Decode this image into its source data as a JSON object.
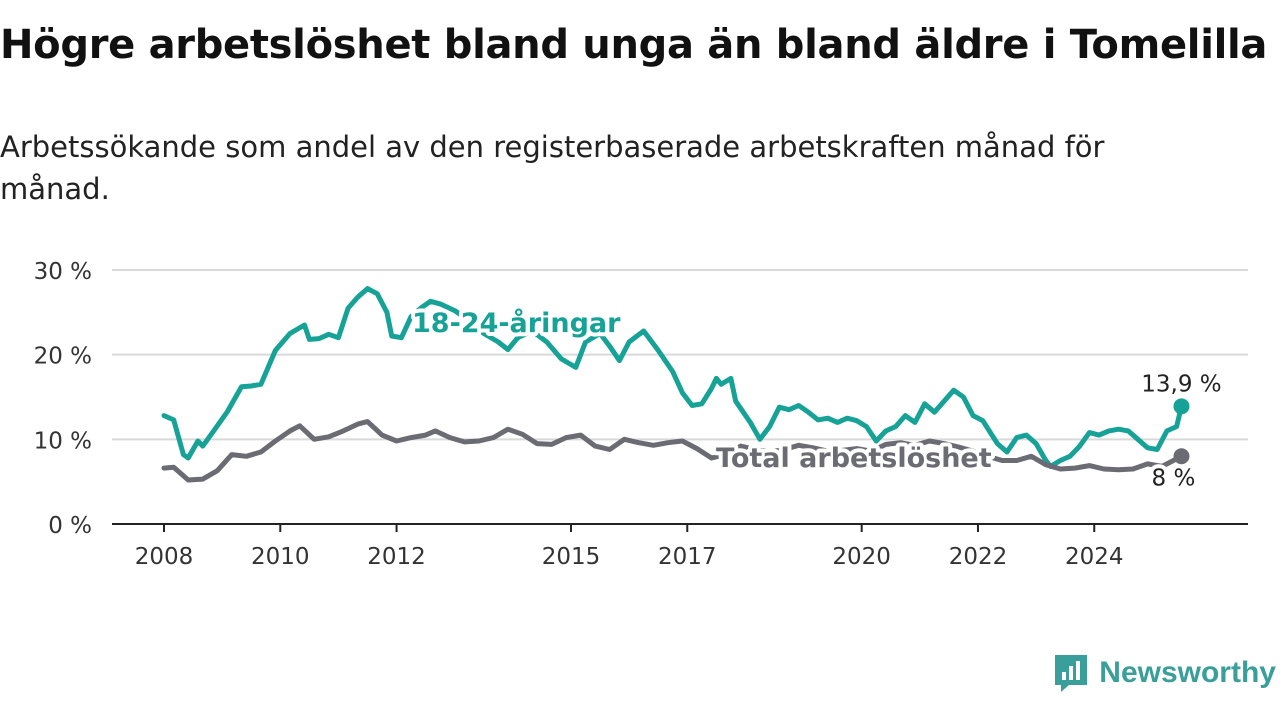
{
  "title": "Högre arbetslöshet bland unga än bland äldre i Tomelilla",
  "subtitle": "Arbetssökande som andel av den registerbaserade arbetskraften månad för månad.",
  "brand": "Newsworthy",
  "colors": {
    "youth": "#17a297",
    "total": "#6b6b74",
    "grid": "#d9d9d9",
    "axis": "#222222",
    "brand": "#3a9e9a"
  },
  "chart_data": {
    "type": "line",
    "title": "Högre arbetslöshet bland unga än bland äldre i Tomelilla",
    "xlabel": "",
    "ylabel": "",
    "ylim": [
      0,
      30
    ],
    "xlim": [
      "2008-01",
      "2025-10"
    ],
    "y_ticks": [
      0,
      10,
      20,
      30
    ],
    "y_tick_labels": [
      "0 %",
      "10 %",
      "20 %",
      "30 %"
    ],
    "x_ticks": [
      {
        "label": "2008",
        "date": "2008-01"
      },
      {
        "label": "2010",
        "date": "2010-01"
      },
      {
        "label": "2012",
        "date": "2012-01"
      },
      {
        "label": "2015",
        "date": "2015-01"
      },
      {
        "label": "2017",
        "date": "2017-01"
      },
      {
        "label": "2020",
        "date": "2020-01"
      },
      {
        "label": "2022",
        "date": "2022-01"
      },
      {
        "label": "2024",
        "date": "2024-01"
      }
    ],
    "grid": true,
    "legend": "inline labels",
    "series": [
      {
        "name": "18-24-åringar",
        "color": "#17a297",
        "end_label": "13,9 %",
        "points": [
          [
            "2008-01",
            12.8
          ],
          [
            "2008-03",
            12.3
          ],
          [
            "2008-05",
            8.2
          ],
          [
            "2008-06",
            7.8
          ],
          [
            "2008-08",
            9.8
          ],
          [
            "2008-09",
            9.2
          ],
          [
            "2008-11",
            10.8
          ],
          [
            "2009-02",
            13.2
          ],
          [
            "2009-05",
            16.2
          ],
          [
            "2009-07",
            16.3
          ],
          [
            "2009-09",
            16.5
          ],
          [
            "2009-12",
            20.5
          ],
          [
            "2010-03",
            22.5
          ],
          [
            "2010-06",
            23.5
          ],
          [
            "2010-07",
            21.8
          ],
          [
            "2010-09",
            21.9
          ],
          [
            "2010-11",
            22.4
          ],
          [
            "2011-01",
            22.0
          ],
          [
            "2011-03",
            25.5
          ],
          [
            "2011-05",
            26.8
          ],
          [
            "2011-07",
            27.8
          ],
          [
            "2011-09",
            27.2
          ],
          [
            "2011-11",
            25.0
          ],
          [
            "2011-12",
            22.2
          ],
          [
            "2012-02",
            22.0
          ],
          [
            "2012-04",
            24.5
          ],
          [
            "2012-06",
            25.5
          ],
          [
            "2012-08",
            26.3
          ],
          [
            "2012-10",
            26.0
          ],
          [
            "2013-01",
            25.2
          ],
          [
            "2013-04",
            24.0
          ],
          [
            "2013-07",
            22.5
          ],
          [
            "2013-10",
            21.5
          ],
          [
            "2013-12",
            20.6
          ],
          [
            "2014-02",
            22.0
          ],
          [
            "2014-05",
            22.8
          ],
          [
            "2014-08",
            21.5
          ],
          [
            "2014-11",
            19.5
          ],
          [
            "2015-02",
            18.5
          ],
          [
            "2015-04",
            21.5
          ],
          [
            "2015-07",
            22.5
          ],
          [
            "2015-09",
            21.0
          ],
          [
            "2015-11",
            19.3
          ],
          [
            "2016-01",
            21.5
          ],
          [
            "2016-04",
            22.8
          ],
          [
            "2016-07",
            20.5
          ],
          [
            "2016-10",
            18.0
          ],
          [
            "2016-12",
            15.5
          ],
          [
            "2017-02",
            14.0
          ],
          [
            "2017-04",
            14.2
          ],
          [
            "2017-06",
            16.0
          ],
          [
            "2017-07",
            17.2
          ],
          [
            "2017-08",
            16.5
          ],
          [
            "2017-10",
            17.2
          ],
          [
            "2017-11",
            14.5
          ],
          [
            "2018-02",
            12.0
          ],
          [
            "2018-04",
            10.0
          ],
          [
            "2018-06",
            11.5
          ],
          [
            "2018-08",
            13.8
          ],
          [
            "2018-10",
            13.5
          ],
          [
            "2018-12",
            14.0
          ],
          [
            "2019-02",
            13.2
          ],
          [
            "2019-04",
            12.3
          ],
          [
            "2019-06",
            12.5
          ],
          [
            "2019-08",
            12.0
          ],
          [
            "2019-10",
            12.5
          ],
          [
            "2019-12",
            12.2
          ],
          [
            "2020-02",
            11.5
          ],
          [
            "2020-04",
            9.8
          ],
          [
            "2020-06",
            11.0
          ],
          [
            "2020-08",
            11.5
          ],
          [
            "2020-10",
            12.8
          ],
          [
            "2020-12",
            12.0
          ],
          [
            "2021-02",
            14.2
          ],
          [
            "2021-04",
            13.2
          ],
          [
            "2021-06",
            14.5
          ],
          [
            "2021-08",
            15.8
          ],
          [
            "2021-10",
            15.0
          ],
          [
            "2021-12",
            12.8
          ],
          [
            "2022-02",
            12.2
          ],
          [
            "2022-05",
            9.5
          ],
          [
            "2022-07",
            8.5
          ],
          [
            "2022-09",
            10.2
          ],
          [
            "2022-11",
            10.5
          ],
          [
            "2023-01",
            9.5
          ],
          [
            "2023-03",
            7.5
          ],
          [
            "2023-04",
            6.8
          ],
          [
            "2023-06",
            7.5
          ],
          [
            "2023-08",
            8.0
          ],
          [
            "2023-10",
            9.2
          ],
          [
            "2023-12",
            10.8
          ],
          [
            "2024-02",
            10.5
          ],
          [
            "2024-04",
            11.0
          ],
          [
            "2024-06",
            11.2
          ],
          [
            "2024-08",
            11.0
          ],
          [
            "2024-10",
            10.0
          ],
          [
            "2024-12",
            9.0
          ],
          [
            "2025-02",
            8.8
          ],
          [
            "2025-04",
            11.0
          ],
          [
            "2025-06",
            11.5
          ],
          [
            "2025-07",
            13.9
          ]
        ]
      },
      {
        "name": "Total arbetslöshet",
        "color": "#6b6b74",
        "end_label": "8 %",
        "points": [
          [
            "2008-01",
            6.6
          ],
          [
            "2008-03",
            6.7
          ],
          [
            "2008-06",
            5.2
          ],
          [
            "2008-09",
            5.3
          ],
          [
            "2008-12",
            6.3
          ],
          [
            "2009-03",
            8.2
          ],
          [
            "2009-06",
            8.0
          ],
          [
            "2009-09",
            8.5
          ],
          [
            "2009-12",
            9.8
          ],
          [
            "2010-03",
            11.0
          ],
          [
            "2010-05",
            11.6
          ],
          [
            "2010-08",
            10.0
          ],
          [
            "2010-11",
            10.3
          ],
          [
            "2011-02",
            11.0
          ],
          [
            "2011-05",
            11.8
          ],
          [
            "2011-07",
            12.1
          ],
          [
            "2011-10",
            10.5
          ],
          [
            "2012-01",
            9.8
          ],
          [
            "2012-04",
            10.2
          ],
          [
            "2012-07",
            10.5
          ],
          [
            "2012-09",
            11.0
          ],
          [
            "2012-12",
            10.2
          ],
          [
            "2013-03",
            9.7
          ],
          [
            "2013-06",
            9.8
          ],
          [
            "2013-09",
            10.2
          ],
          [
            "2013-12",
            11.2
          ],
          [
            "2014-03",
            10.6
          ],
          [
            "2014-06",
            9.5
          ],
          [
            "2014-09",
            9.4
          ],
          [
            "2014-12",
            10.2
          ],
          [
            "2015-03",
            10.5
          ],
          [
            "2015-06",
            9.2
          ],
          [
            "2015-09",
            8.8
          ],
          [
            "2015-12",
            10.0
          ],
          [
            "2016-03",
            9.6
          ],
          [
            "2016-06",
            9.3
          ],
          [
            "2016-09",
            9.6
          ],
          [
            "2016-12",
            9.8
          ],
          [
            "2017-03",
            8.9
          ],
          [
            "2017-06",
            7.8
          ],
          [
            "2017-09",
            8.2
          ],
          [
            "2017-12",
            9.2
          ],
          [
            "2018-03",
            8.8
          ],
          [
            "2018-06",
            8.5
          ],
          [
            "2018-09",
            8.8
          ],
          [
            "2018-12",
            9.3
          ],
          [
            "2019-03",
            9.0
          ],
          [
            "2019-06",
            8.6
          ],
          [
            "2019-09",
            8.7
          ],
          [
            "2019-12",
            8.9
          ],
          [
            "2020-03",
            8.6
          ],
          [
            "2020-06",
            9.4
          ],
          [
            "2020-09",
            9.6
          ],
          [
            "2020-12",
            9.3
          ],
          [
            "2021-03",
            9.8
          ],
          [
            "2021-06",
            9.5
          ],
          [
            "2021-09",
            9.1
          ],
          [
            "2021-12",
            8.6
          ],
          [
            "2022-03",
            8.0
          ],
          [
            "2022-06",
            7.5
          ],
          [
            "2022-09",
            7.5
          ],
          [
            "2022-12",
            8.0
          ],
          [
            "2023-03",
            7.0
          ],
          [
            "2023-06",
            6.5
          ],
          [
            "2023-09",
            6.6
          ],
          [
            "2023-12",
            6.9
          ],
          [
            "2024-03",
            6.5
          ],
          [
            "2024-06",
            6.4
          ],
          [
            "2024-09",
            6.5
          ],
          [
            "2024-12",
            7.1
          ],
          [
            "2025-03",
            6.8
          ],
          [
            "2025-07",
            8.0
          ]
        ]
      }
    ]
  }
}
